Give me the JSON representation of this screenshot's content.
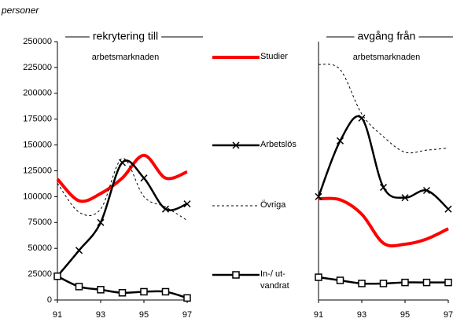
{
  "chart_data": {
    "type": "line",
    "y_label": "personer",
    "x": [
      91,
      92,
      93,
      94,
      95,
      96,
      97
    ],
    "xlim": [
      91,
      97
    ],
    "xticks": [
      91,
      93,
      95,
      97
    ],
    "ylim": [
      0,
      250000
    ],
    "yticks": [
      0,
      25000,
      50000,
      75000,
      100000,
      125000,
      150000,
      175000,
      200000,
      225000,
      250000
    ],
    "series": [
      {
        "name": "Studier",
        "color": "#ff0000",
        "width": 4,
        "dash": "none",
        "marker": "none"
      },
      {
        "name": "Arbetslös",
        "color": "#000000",
        "width": 2.5,
        "dash": "none",
        "marker": "x"
      },
      {
        "name": "Övriga",
        "color": "#000000",
        "width": 1,
        "dash": "3,3",
        "marker": "none"
      },
      {
        "name": "In-/ ut-\nvandrat",
        "color": "#000000",
        "width": 2.5,
        "dash": "none",
        "marker": "square"
      }
    ],
    "panels": [
      {
        "title": "rekrytering till",
        "subtitle": "arbetsmarknaden",
        "values": [
          [
            117000,
            96000,
            103000,
            118000,
            140000,
            118000,
            124000
          ],
          [
            23000,
            48000,
            75000,
            133000,
            118000,
            88000,
            93000
          ],
          [
            113000,
            85000,
            88000,
            137000,
            100000,
            90000,
            77000
          ],
          [
            23000,
            13000,
            10000,
            7000,
            8000,
            8000,
            2000
          ]
        ]
      },
      {
        "title": "avgång från",
        "subtitle": "arbetsmarknaden",
        "values": [
          [
            98000,
            97000,
            83000,
            55000,
            54000,
            59000,
            69000
          ],
          [
            100000,
            154000,
            176000,
            109000,
            99000,
            106000,
            88000
          ],
          [
            228000,
            223000,
            180000,
            158000,
            143000,
            145000,
            147000
          ],
          [
            22000,
            19000,
            16000,
            16000,
            17000,
            17000,
            17000
          ]
        ]
      }
    ]
  }
}
